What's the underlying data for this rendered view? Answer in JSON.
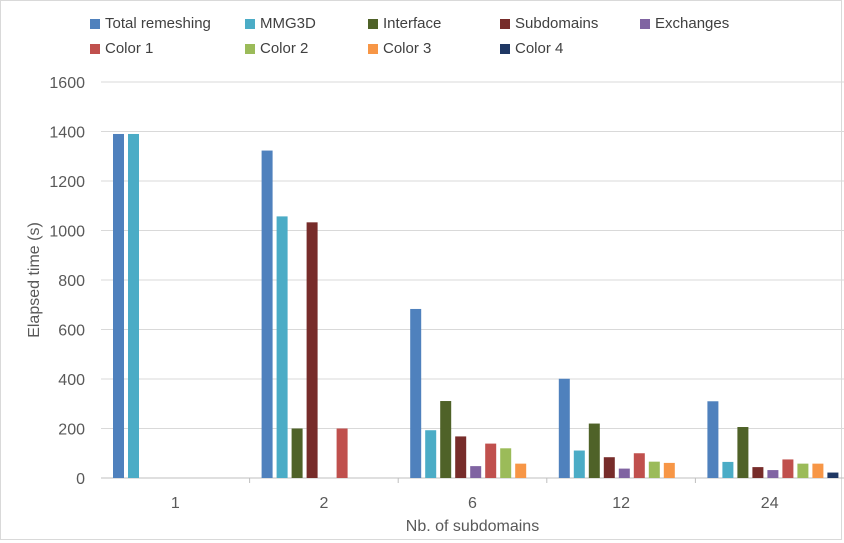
{
  "chart_data": {
    "type": "bar",
    "xlabel": "Nb. of subdomains",
    "ylabel": "Elapsed time (s)",
    "ylim": [
      0,
      1600
    ],
    "yticks": [
      0,
      200,
      400,
      600,
      800,
      1000,
      1200,
      1400,
      1600
    ],
    "grid": true,
    "legend_position": "top",
    "categories": [
      "1",
      "2",
      "6",
      "12",
      "24"
    ],
    "series": [
      {
        "name": "Total remeshing",
        "color": "#4F81BD",
        "values": [
          1390,
          1323,
          683,
          401,
          310
        ]
      },
      {
        "name": "MMG3D",
        "color": "#4BACC6",
        "values": [
          1390,
          1057,
          193,
          111,
          65
        ]
      },
      {
        "name": "Interface",
        "color": "#4F6228",
        "values": [
          0,
          200,
          311,
          220,
          206
        ]
      },
      {
        "name": "Subdomains",
        "color": "#772C2A",
        "values": [
          0,
          1033,
          168,
          84,
          44
        ]
      },
      {
        "name": "Exchanges",
        "color": "#8064A2",
        "values": [
          0,
          0,
          48,
          38,
          32
        ]
      },
      {
        "name": "Color 1",
        "color": "#C0504D",
        "values": [
          0,
          200,
          139,
          100,
          75
        ]
      },
      {
        "name": "Color 2",
        "color": "#9BBB59",
        "values": [
          0,
          0,
          120,
          66,
          58
        ]
      },
      {
        "name": "Color 3",
        "color": "#F79646",
        "values": [
          0,
          0,
          58,
          61,
          58
        ]
      },
      {
        "name": "Color 4",
        "color": "#1F3864",
        "values": [
          0,
          0,
          0,
          0,
          22
        ]
      }
    ]
  }
}
